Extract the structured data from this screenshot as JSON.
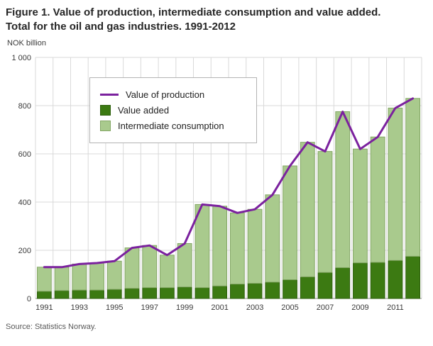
{
  "header": {
    "title_line1": "Figure 1. Value of production, intermediate consumption and value added.",
    "title_line2": "Total for the oil and gas industries. 1991-2012"
  },
  "footer": {
    "source": "Source: Statistics Norway."
  },
  "chart_data": {
    "type": "bar",
    "subtype": "stacked-bars-with-line-overlay",
    "title": "Figure 1. Value of production, intermediate consumption and value added. Total for the oil and gas industries. 1991-2012",
    "ylabel": "NOK billion",
    "xlabel": "",
    "ylim": [
      0,
      1000
    ],
    "yticks": [
      0,
      200,
      400,
      600,
      800,
      1000
    ],
    "ytick_labels": [
      "0",
      "200",
      "400",
      "600",
      "800",
      "1 000"
    ],
    "categories": [
      1991,
      1992,
      1993,
      1994,
      1995,
      1996,
      1997,
      1998,
      1999,
      2000,
      2001,
      2002,
      2003,
      2004,
      2005,
      2006,
      2007,
      2008,
      2009,
      2010,
      2011,
      2012
    ],
    "xtick_labels": [
      "1991",
      "1993",
      "1995",
      "1997",
      "1999",
      "2001",
      "2003",
      "2005",
      "2007",
      "2009",
      "2011"
    ],
    "grid": true,
    "grid_color": "#d9d9d9",
    "axis_color": "#8c8c8c",
    "tick_text_color": "#3a3a3a",
    "legend_position": "top-left-inside",
    "series": [
      {
        "name": "Value of production",
        "type": "line",
        "color": "#7b219e",
        "values": [
          130,
          130,
          143,
          147,
          155,
          210,
          220,
          180,
          228,
          390,
          383,
          355,
          370,
          430,
          550,
          648,
          610,
          775,
          620,
          670,
          790,
          830
        ]
      },
      {
        "name": "Value added",
        "type": "bar",
        "color": "#3c7a12",
        "stroke": "#2e5f0d",
        "values": [
          30,
          33,
          35,
          35,
          38,
          42,
          45,
          45,
          48,
          45,
          52,
          60,
          63,
          68,
          78,
          90,
          108,
          128,
          148,
          150,
          158,
          175
        ]
      },
      {
        "name": "Intermediate consumption",
        "type": "bar",
        "color": "#a9ca8d",
        "stroke": "#84a766",
        "values": [
          100,
          97,
          108,
          112,
          117,
          168,
          175,
          135,
          180,
          345,
          331,
          295,
          307,
          362,
          472,
          558,
          502,
          647,
          472,
          520,
          632,
          655
        ]
      }
    ]
  }
}
